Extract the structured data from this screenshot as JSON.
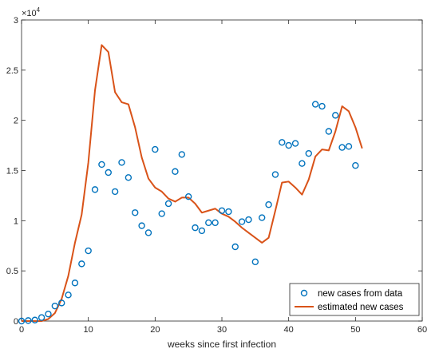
{
  "chart_data": {
    "type": "line",
    "xlabel": "weeks since first infection",
    "ylabel": "",
    "xlim": [
      0,
      60
    ],
    "ylim": [
      0,
      30000
    ],
    "x_ticks": [
      0,
      10,
      20,
      30,
      40,
      50,
      60
    ],
    "y_ticks": [
      0,
      5000,
      10000,
      15000,
      20000,
      25000,
      30000
    ],
    "y_tick_labels": [
      "0",
      "0.5",
      "1",
      "1.5",
      "2",
      "2.5",
      "3"
    ],
    "y_multiplier_base": "×10",
    "y_multiplier_exponent": "4",
    "grid": false,
    "legend_position": "bottom-right",
    "series": [
      {
        "name": "new cases from data",
        "kind": "scatter",
        "marker": "circle",
        "color": "#0072BD",
        "x": [
          0,
          1,
          2,
          3,
          4,
          5,
          6,
          7,
          8,
          9,
          10,
          11,
          12,
          13,
          14,
          15,
          16,
          17,
          18,
          19,
          20,
          21,
          22,
          23,
          24,
          25,
          26,
          27,
          28,
          29,
          30,
          31,
          32,
          33,
          34,
          35,
          36,
          37,
          38,
          39,
          40,
          41,
          42,
          43,
          44,
          45,
          46,
          47,
          48,
          49,
          50
        ],
        "y": [
          0,
          50,
          100,
          350,
          700,
          1500,
          1800,
          2600,
          3800,
          5700,
          7000,
          13100,
          15600,
          14800,
          12900,
          15800,
          14300,
          10800,
          9500,
          8800,
          17100,
          10700,
          11700,
          14900,
          16600,
          12400,
          9300,
          9000,
          9800,
          9800,
          11000,
          10900,
          7400,
          9900,
          10100,
          5900,
          10300,
          11600,
          14600,
          17800,
          17500,
          17700,
          15700,
          16700,
          21600,
          21400,
          18900,
          20500,
          17300,
          17400,
          15500
        ]
      },
      {
        "name": "estimated new cases",
        "kind": "line",
        "color": "#D95319",
        "x": [
          0,
          1,
          2,
          3,
          4,
          5,
          6,
          7,
          8,
          9,
          10,
          11,
          12,
          13,
          14,
          15,
          16,
          17,
          18,
          19,
          20,
          21,
          22,
          23,
          24,
          25,
          26,
          27,
          28,
          29,
          30,
          31,
          32,
          33,
          34,
          35,
          36,
          37,
          38,
          39,
          40,
          41,
          42,
          43,
          44,
          45,
          46,
          47,
          48,
          49,
          50,
          51
        ],
        "y": [
          0,
          0,
          0,
          0,
          200,
          800,
          2200,
          4500,
          7800,
          10600,
          15800,
          23000,
          27500,
          26800,
          22800,
          21800,
          21600,
          19300,
          16300,
          14200,
          13300,
          12900,
          12200,
          11900,
          12300,
          12300,
          11700,
          10800,
          11000,
          11200,
          10700,
          10400,
          9900,
          9300,
          8800,
          8300,
          7800,
          8300,
          11000,
          13800,
          13900,
          13300,
          12600,
          14100,
          16400,
          17100,
          17000,
          18900,
          21400,
          20900,
          19300,
          17200
        ]
      }
    ]
  }
}
